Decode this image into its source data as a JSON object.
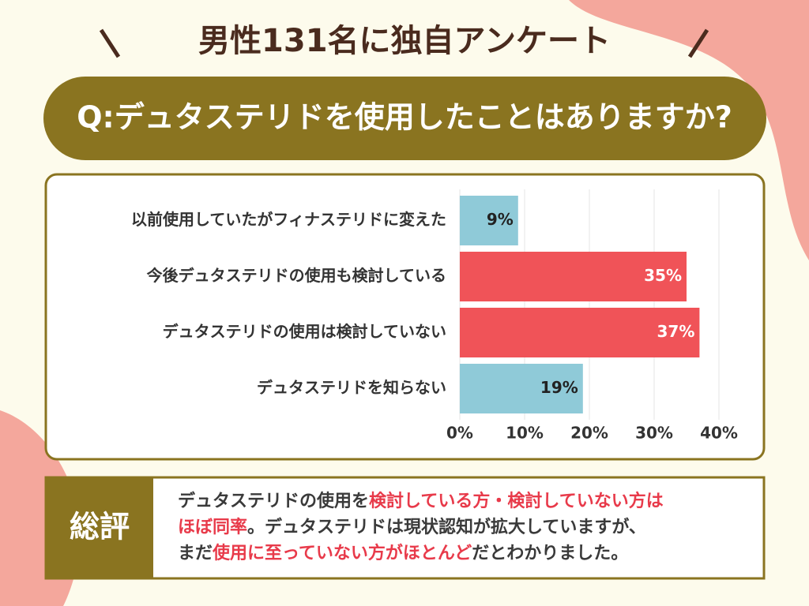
{
  "header": {
    "title": "男性131名に独自アンケート"
  },
  "question": "Q:デュタステリドを使用したことはありますか?",
  "chart_data": {
    "type": "bar",
    "orientation": "horizontal",
    "categories": [
      "以前使用していたがフィナステリドに変えた",
      "今後デュタステリドの使用も検討している",
      "デュタステリドの使用は検討していない",
      "デュタステリドを知らない"
    ],
    "values": [
      9,
      35,
      37,
      19
    ],
    "value_labels": [
      "9%",
      "35%",
      "37%",
      "19%"
    ],
    "colors": [
      "#8fcad8",
      "#f05358",
      "#f05358",
      "#8fcad8"
    ],
    "xlim": [
      0,
      40
    ],
    "xticks": [
      {
        "value": 0,
        "label": "0%"
      },
      {
        "value": 10,
        "label": "10%"
      },
      {
        "value": 20,
        "label": "20%"
      },
      {
        "value": 30,
        "label": "30%"
      },
      {
        "value": 40,
        "label": "40%"
      }
    ],
    "grid": true
  },
  "summary": {
    "label": "総評",
    "lines": [
      [
        {
          "text": "デュタステリドの使用を",
          "highlight": false
        },
        {
          "text": "検討している方・検討していない方は",
          "highlight": true
        }
      ],
      [
        {
          "text": "ほぼ同率",
          "highlight": true
        },
        {
          "text": "。デュタステリドは現状認知が拡大していますが、",
          "highlight": false
        }
      ],
      [
        {
          "text": "まだ",
          "highlight": false
        },
        {
          "text": "使用に至っていない方がほとんど",
          "highlight": true
        },
        {
          "text": "だとわかりました。",
          "highlight": false
        }
      ]
    ]
  }
}
